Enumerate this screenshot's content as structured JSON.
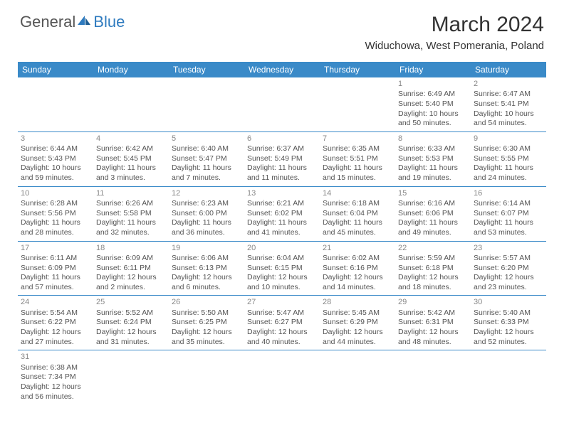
{
  "logo": {
    "general": "General",
    "blue": "Blue"
  },
  "title": "March 2024",
  "location": "Widuchowa, West Pomerania, Poland",
  "colors": {
    "header_bg": "#3a8ac8",
    "header_text": "#ffffff",
    "body_text": "#555555",
    "daynum_text": "#888888",
    "border": "#3a8ac8",
    "logo_gray": "#555555",
    "logo_blue": "#2f7bbf"
  },
  "weekdays": [
    "Sunday",
    "Monday",
    "Tuesday",
    "Wednesday",
    "Thursday",
    "Friday",
    "Saturday"
  ],
  "weeks": [
    [
      null,
      null,
      null,
      null,
      null,
      {
        "n": "1",
        "sr": "Sunrise: 6:49 AM",
        "ss": "Sunset: 5:40 PM",
        "d1": "Daylight: 10 hours",
        "d2": "and 50 minutes."
      },
      {
        "n": "2",
        "sr": "Sunrise: 6:47 AM",
        "ss": "Sunset: 5:41 PM",
        "d1": "Daylight: 10 hours",
        "d2": "and 54 minutes."
      }
    ],
    [
      {
        "n": "3",
        "sr": "Sunrise: 6:44 AM",
        "ss": "Sunset: 5:43 PM",
        "d1": "Daylight: 10 hours",
        "d2": "and 59 minutes."
      },
      {
        "n": "4",
        "sr": "Sunrise: 6:42 AM",
        "ss": "Sunset: 5:45 PM",
        "d1": "Daylight: 11 hours",
        "d2": "and 3 minutes."
      },
      {
        "n": "5",
        "sr": "Sunrise: 6:40 AM",
        "ss": "Sunset: 5:47 PM",
        "d1": "Daylight: 11 hours",
        "d2": "and 7 minutes."
      },
      {
        "n": "6",
        "sr": "Sunrise: 6:37 AM",
        "ss": "Sunset: 5:49 PM",
        "d1": "Daylight: 11 hours",
        "d2": "and 11 minutes."
      },
      {
        "n": "7",
        "sr": "Sunrise: 6:35 AM",
        "ss": "Sunset: 5:51 PM",
        "d1": "Daylight: 11 hours",
        "d2": "and 15 minutes."
      },
      {
        "n": "8",
        "sr": "Sunrise: 6:33 AM",
        "ss": "Sunset: 5:53 PM",
        "d1": "Daylight: 11 hours",
        "d2": "and 19 minutes."
      },
      {
        "n": "9",
        "sr": "Sunrise: 6:30 AM",
        "ss": "Sunset: 5:55 PM",
        "d1": "Daylight: 11 hours",
        "d2": "and 24 minutes."
      }
    ],
    [
      {
        "n": "10",
        "sr": "Sunrise: 6:28 AM",
        "ss": "Sunset: 5:56 PM",
        "d1": "Daylight: 11 hours",
        "d2": "and 28 minutes."
      },
      {
        "n": "11",
        "sr": "Sunrise: 6:26 AM",
        "ss": "Sunset: 5:58 PM",
        "d1": "Daylight: 11 hours",
        "d2": "and 32 minutes."
      },
      {
        "n": "12",
        "sr": "Sunrise: 6:23 AM",
        "ss": "Sunset: 6:00 PM",
        "d1": "Daylight: 11 hours",
        "d2": "and 36 minutes."
      },
      {
        "n": "13",
        "sr": "Sunrise: 6:21 AM",
        "ss": "Sunset: 6:02 PM",
        "d1": "Daylight: 11 hours",
        "d2": "and 41 minutes."
      },
      {
        "n": "14",
        "sr": "Sunrise: 6:18 AM",
        "ss": "Sunset: 6:04 PM",
        "d1": "Daylight: 11 hours",
        "d2": "and 45 minutes."
      },
      {
        "n": "15",
        "sr": "Sunrise: 6:16 AM",
        "ss": "Sunset: 6:06 PM",
        "d1": "Daylight: 11 hours",
        "d2": "and 49 minutes."
      },
      {
        "n": "16",
        "sr": "Sunrise: 6:14 AM",
        "ss": "Sunset: 6:07 PM",
        "d1": "Daylight: 11 hours",
        "d2": "and 53 minutes."
      }
    ],
    [
      {
        "n": "17",
        "sr": "Sunrise: 6:11 AM",
        "ss": "Sunset: 6:09 PM",
        "d1": "Daylight: 11 hours",
        "d2": "and 57 minutes."
      },
      {
        "n": "18",
        "sr": "Sunrise: 6:09 AM",
        "ss": "Sunset: 6:11 PM",
        "d1": "Daylight: 12 hours",
        "d2": "and 2 minutes."
      },
      {
        "n": "19",
        "sr": "Sunrise: 6:06 AM",
        "ss": "Sunset: 6:13 PM",
        "d1": "Daylight: 12 hours",
        "d2": "and 6 minutes."
      },
      {
        "n": "20",
        "sr": "Sunrise: 6:04 AM",
        "ss": "Sunset: 6:15 PM",
        "d1": "Daylight: 12 hours",
        "d2": "and 10 minutes."
      },
      {
        "n": "21",
        "sr": "Sunrise: 6:02 AM",
        "ss": "Sunset: 6:16 PM",
        "d1": "Daylight: 12 hours",
        "d2": "and 14 minutes."
      },
      {
        "n": "22",
        "sr": "Sunrise: 5:59 AM",
        "ss": "Sunset: 6:18 PM",
        "d1": "Daylight: 12 hours",
        "d2": "and 18 minutes."
      },
      {
        "n": "23",
        "sr": "Sunrise: 5:57 AM",
        "ss": "Sunset: 6:20 PM",
        "d1": "Daylight: 12 hours",
        "d2": "and 23 minutes."
      }
    ],
    [
      {
        "n": "24",
        "sr": "Sunrise: 5:54 AM",
        "ss": "Sunset: 6:22 PM",
        "d1": "Daylight: 12 hours",
        "d2": "and 27 minutes."
      },
      {
        "n": "25",
        "sr": "Sunrise: 5:52 AM",
        "ss": "Sunset: 6:24 PM",
        "d1": "Daylight: 12 hours",
        "d2": "and 31 minutes."
      },
      {
        "n": "26",
        "sr": "Sunrise: 5:50 AM",
        "ss": "Sunset: 6:25 PM",
        "d1": "Daylight: 12 hours",
        "d2": "and 35 minutes."
      },
      {
        "n": "27",
        "sr": "Sunrise: 5:47 AM",
        "ss": "Sunset: 6:27 PM",
        "d1": "Daylight: 12 hours",
        "d2": "and 40 minutes."
      },
      {
        "n": "28",
        "sr": "Sunrise: 5:45 AM",
        "ss": "Sunset: 6:29 PM",
        "d1": "Daylight: 12 hours",
        "d2": "and 44 minutes."
      },
      {
        "n": "29",
        "sr": "Sunrise: 5:42 AM",
        "ss": "Sunset: 6:31 PM",
        "d1": "Daylight: 12 hours",
        "d2": "and 48 minutes."
      },
      {
        "n": "30",
        "sr": "Sunrise: 5:40 AM",
        "ss": "Sunset: 6:33 PM",
        "d1": "Daylight: 12 hours",
        "d2": "and 52 minutes."
      }
    ],
    [
      {
        "n": "31",
        "sr": "Sunrise: 6:38 AM",
        "ss": "Sunset: 7:34 PM",
        "d1": "Daylight: 12 hours",
        "d2": "and 56 minutes."
      },
      null,
      null,
      null,
      null,
      null,
      null
    ]
  ]
}
